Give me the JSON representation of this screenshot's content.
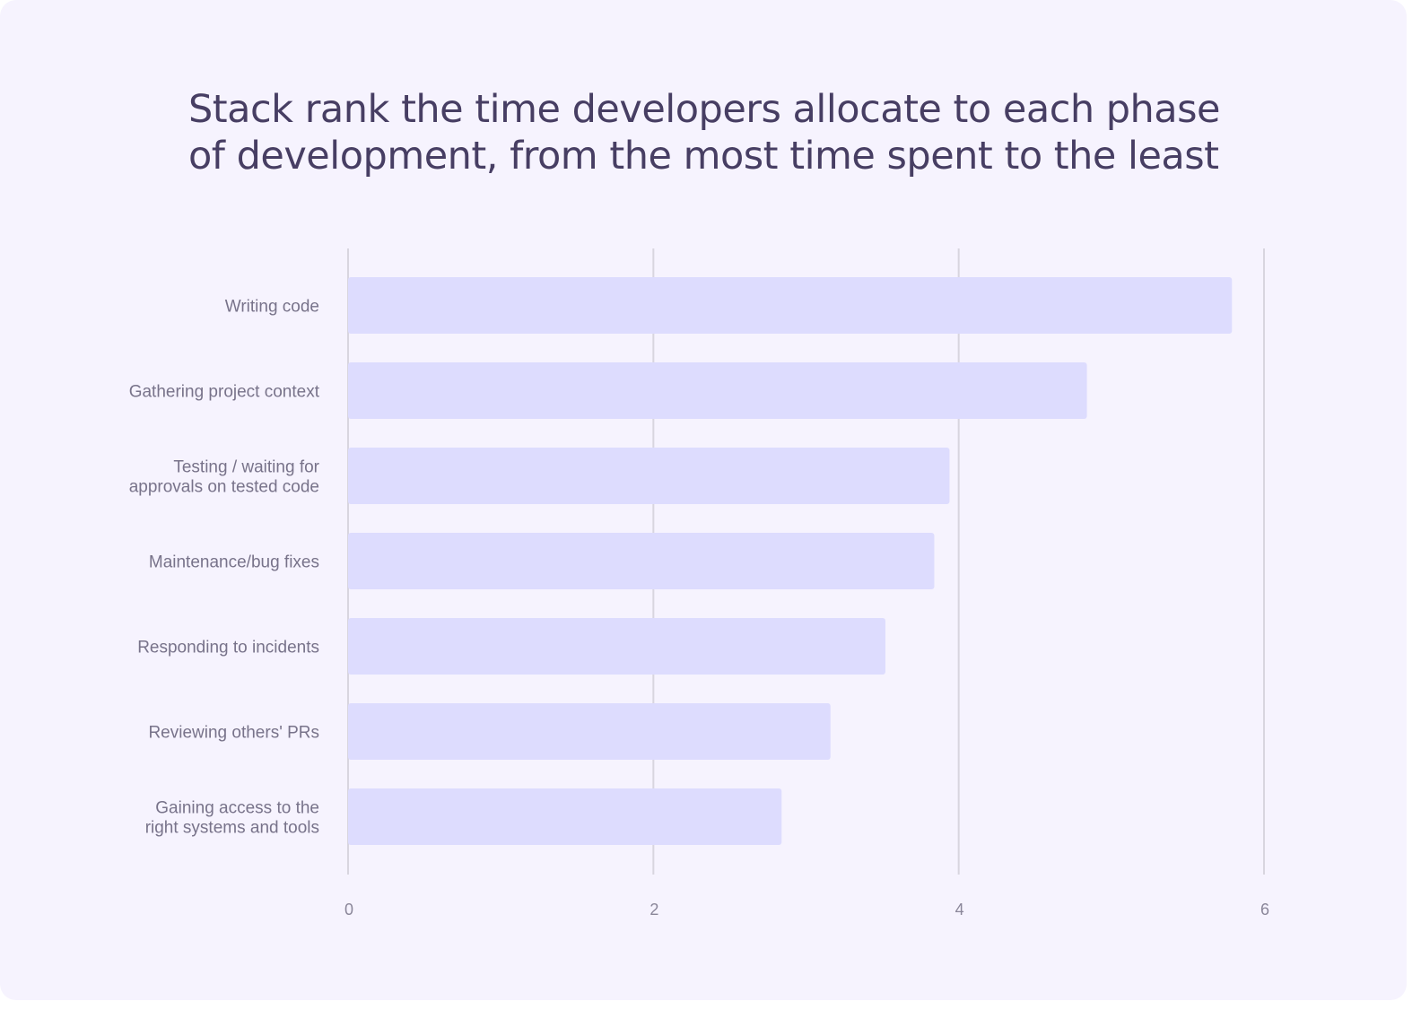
{
  "chart_data": {
    "type": "bar",
    "orientation": "horizontal",
    "title": "Stack rank the time developers allocate to each phase of development, from the most time spent to the least",
    "categories": [
      [
        "Writing code"
      ],
      [
        "Gathering project context"
      ],
      [
        "Testing / waiting for",
        "approvals on tested code"
      ],
      [
        "Maintenance/bug fixes"
      ],
      [
        "Responding to incidents"
      ],
      [
        "Reviewing others' PRs"
      ],
      [
        "Gaining access to the",
        "right systems and tools"
      ]
    ],
    "values": [
      5.79,
      4.84,
      3.94,
      3.84,
      3.52,
      3.16,
      2.84
    ],
    "xlim": [
      0,
      6
    ],
    "xticks": [
      "0",
      "2",
      "4",
      "6"
    ],
    "grid": true,
    "xlabel": "",
    "ylabel": "",
    "colors": {
      "bar": "#dddcfe",
      "grid": "#d8d5df",
      "background": "#f6f3fe",
      "title": "#473e63"
    }
  }
}
